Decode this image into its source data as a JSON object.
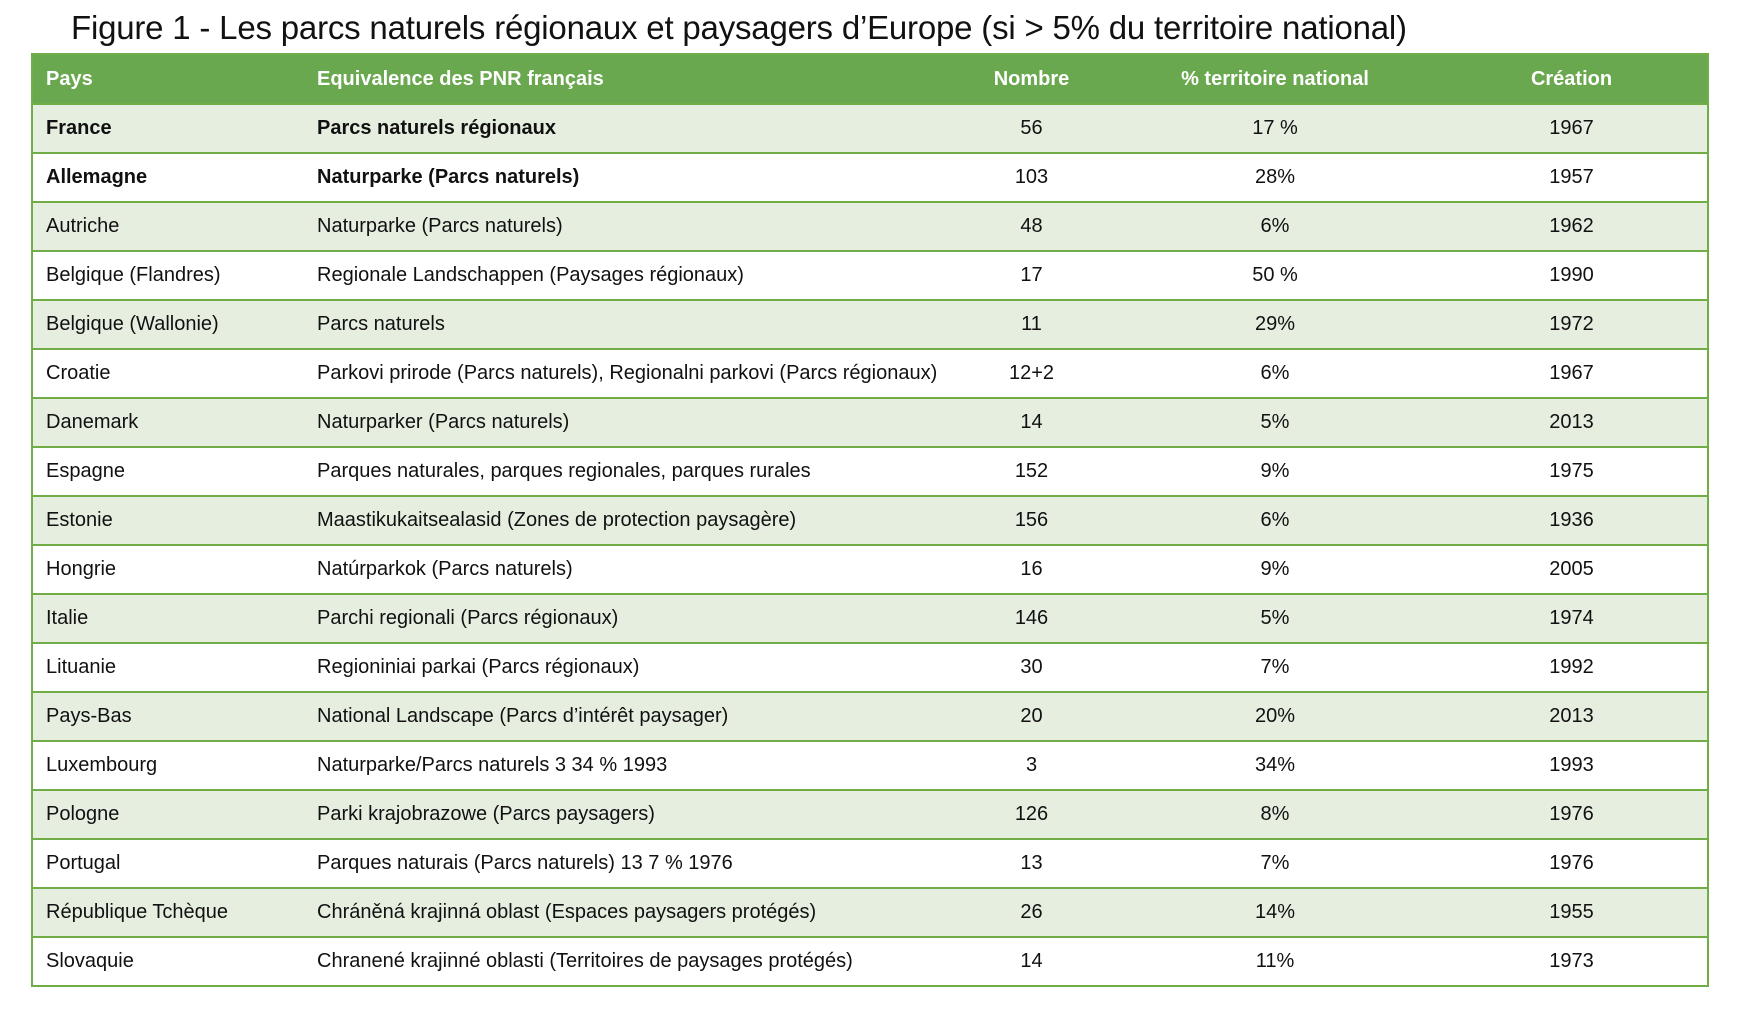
{
  "title": "Figure 1 - Les parcs naturels régionaux et paysagers d’Europe (si > 5% du territoire national)",
  "colors": {
    "header_bg": "#6aa84f",
    "row_alt_bg": "#e6eee0",
    "border": "#70ad47"
  },
  "table": {
    "headers": [
      "Pays",
      "Equivalence des PNR français",
      "Nombre",
      "% territoire national",
      "Création"
    ],
    "rows": [
      {
        "pays": "France",
        "equivalence": "Parcs naturels régionaux",
        "nombre": "56",
        "territoire": "17 %",
        "creation": "1967"
      },
      {
        "pays": "Allemagne",
        "equivalence": "Naturparke (Parcs naturels)",
        "nombre": "103",
        "territoire": "28%",
        "creation": "1957"
      },
      {
        "pays": "Autriche",
        "equivalence": "Naturparke (Parcs naturels)",
        "nombre": "48",
        "territoire": "6%",
        "creation": "1962"
      },
      {
        "pays": "Belgique (Flandres)",
        "equivalence": "Regionale Landschappen (Paysages régionaux)",
        "nombre": "17",
        "territoire": "50 %",
        "creation": "1990"
      },
      {
        "pays": "Belgique (Wallonie)",
        "equivalence": "Parcs naturels",
        "nombre": "11",
        "territoire": "29%",
        "creation": "1972"
      },
      {
        "pays": "Croatie",
        "equivalence": "Parkovi prirode (Parcs naturels), Regionalni parkovi (Parcs régionaux)",
        "nombre": "12+2",
        "territoire": "6%",
        "creation": "1967"
      },
      {
        "pays": "Danemark",
        "equivalence": "Naturparker (Parcs naturels)",
        "nombre": "14",
        "territoire": "5%",
        "creation": "2013"
      },
      {
        "pays": "Espagne",
        "equivalence": "Parques naturales, parques regionales, parques rurales",
        "nombre": "152",
        "territoire": "9%",
        "creation": "1975"
      },
      {
        "pays": "Estonie",
        "equivalence": "Maastikukaitsealasid (Zones de protection paysagère)",
        "nombre": "156",
        "territoire": "6%",
        "creation": "1936"
      },
      {
        "pays": "Hongrie",
        "equivalence": "Natúrparkok (Parcs naturels)",
        "nombre": "16",
        "territoire": "9%",
        "creation": "2005"
      },
      {
        "pays": "Italie",
        "equivalence": "Parchi regionali (Parcs régionaux)",
        "nombre": "146",
        "territoire": "5%",
        "creation": "1974"
      },
      {
        "pays": "Lituanie",
        "equivalence": "Regioniniai parkai (Parcs régionaux)",
        "nombre": "30",
        "territoire": "7%",
        "creation": "1992"
      },
      {
        "pays": "Pays-Bas",
        "equivalence": "National Landscape (Parcs d’intérêt paysager)",
        "nombre": "20",
        "territoire": "20%",
        "creation": "2013"
      },
      {
        "pays": "Luxembourg",
        "equivalence": "Naturparke/Parcs naturels 3 34 % 1993",
        "nombre": "3",
        "territoire": "34%",
        "creation": "1993"
      },
      {
        "pays": "Pologne",
        "equivalence": "Parki krajobrazowe (Parcs paysagers)",
        "nombre": "126",
        "territoire": "8%",
        "creation": "1976"
      },
      {
        "pays": "Portugal",
        "equivalence": "Parques naturais (Parcs naturels) 13 7 % 1976",
        "nombre": "13",
        "territoire": "7%",
        "creation": "1976"
      },
      {
        "pays": "République Tchèque",
        "equivalence": "Chráněná krajinná oblast (Espaces paysagers protégés)",
        "nombre": "26",
        "territoire": "14%",
        "creation": "1955"
      },
      {
        "pays": "Slovaquie",
        "equivalence": "Chranené krajinné oblasti (Territoires de paysages protégés)",
        "nombre": "14",
        "territoire": "11%",
        "creation": "1973"
      }
    ]
  }
}
